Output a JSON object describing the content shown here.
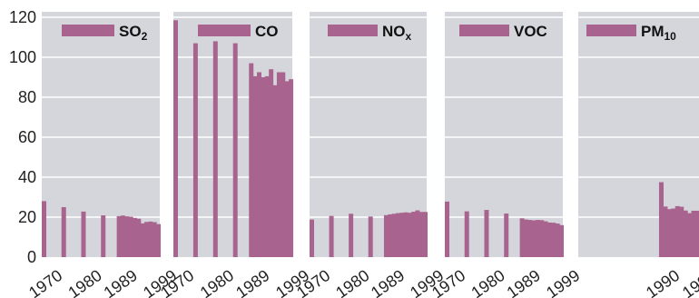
{
  "chart_data": {
    "type": "bar",
    "ylim": [
      0,
      120
    ],
    "yticks": [
      0,
      20,
      40,
      60,
      80,
      100,
      120
    ],
    "grid": true,
    "legend_position": "top-right",
    "colors": {
      "bar": "#a8648e",
      "panel_bg": "#d4d6db",
      "grid": "#ffffff"
    },
    "panels": [
      {
        "name": "SO2",
        "legend_main": "SO",
        "legend_sub": "2",
        "xticks": [
          "1970",
          "1980",
          "1989",
          "1999"
        ],
        "x": [
          "1970",
          "1975",
          "1980",
          "1985",
          "1989",
          "1990",
          "1991",
          "1992",
          "1993",
          "1994",
          "1995",
          "1996",
          "1997",
          "1998",
          "1999"
        ],
        "values": [
          28.0,
          25.0,
          22.8,
          20.9,
          20.5,
          20.8,
          20.4,
          20.2,
          19.6,
          19.2,
          16.9,
          17.6,
          17.8,
          17.5,
          16.5
        ]
      },
      {
        "name": "CO",
        "legend_main": "CO",
        "legend_sub": "",
        "xticks": [
          "1970",
          "1980",
          "1989",
          "1999"
        ],
        "x": [
          "1970",
          "1975",
          "1980",
          "1985",
          "1989",
          "1990",
          "1991",
          "1992",
          "1993",
          "1994",
          "1995",
          "1996",
          "1997",
          "1998",
          "1999"
        ],
        "values": [
          118.5,
          107.0,
          108.0,
          107.0,
          97.0,
          90.5,
          92.5,
          90.0,
          90.5,
          94.0,
          86.0,
          92.5,
          92.5,
          88.0,
          89.0
        ]
      },
      {
        "name": "NOx",
        "legend_main": "NO",
        "legend_sub": "x",
        "xticks": [
          "1970",
          "1980",
          "1989",
          "1999"
        ],
        "x": [
          "1970",
          "1975",
          "1980",
          "1985",
          "1989",
          "1990",
          "1991",
          "1992",
          "1993",
          "1994",
          "1995",
          "1996",
          "1997",
          "1998",
          "1999"
        ],
        "values": [
          18.8,
          20.6,
          21.7,
          20.3,
          21.0,
          21.4,
          21.7,
          22.0,
          22.2,
          22.4,
          22.2,
          22.7,
          23.4,
          22.6,
          22.6
        ]
      },
      {
        "name": "VOC",
        "legend_main": "VOC",
        "legend_sub": "",
        "xticks": [
          "1970",
          "1980",
          "1989",
          "1999"
        ],
        "x": [
          "1970",
          "1975",
          "1980",
          "1985",
          "1989",
          "1990",
          "1991",
          "1992",
          "1993",
          "1994",
          "1995",
          "1996",
          "1997",
          "1998",
          "1999"
        ],
        "values": [
          27.8,
          22.9,
          23.6,
          21.8,
          19.4,
          18.8,
          18.6,
          18.4,
          18.6,
          18.5,
          17.9,
          17.3,
          17.2,
          16.8,
          16.0
        ]
      },
      {
        "name": "PM10",
        "legend_main": "PM",
        "legend_sub": "10",
        "xticks": [
          "1990",
          "1999"
        ],
        "x": [
          "1990",
          "1991",
          "1992",
          "1993",
          "1994",
          "1995",
          "1996",
          "1997",
          "1998",
          "1999"
        ],
        "values": [
          37.5,
          25.3,
          24.0,
          24.3,
          25.5,
          25.2,
          23.3,
          22.0,
          23.2,
          23.2
        ]
      }
    ]
  }
}
